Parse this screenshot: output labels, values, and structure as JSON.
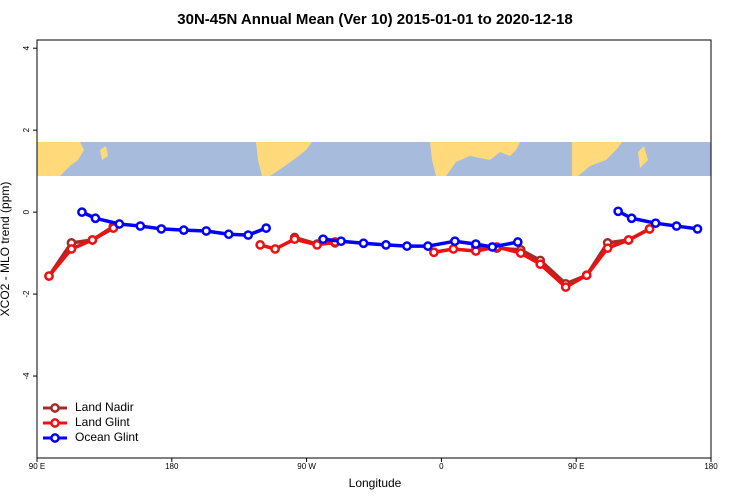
{
  "chart_data": {
    "type": "line",
    "title": "30N-45N Annual Mean (Ver 10)   2015-01-01 to 2020-12-18",
    "x_label": "Longitude",
    "y_label": "XCO2 - MLO trend (ppm)",
    "xlim": [
      90,
      540
    ],
    "xticks": [
      {
        "value": 90,
        "label": "90 E"
      },
      {
        "value": 180,
        "label": "180"
      },
      {
        "value": 270,
        "label": "90 W"
      },
      {
        "value": 360,
        "label": "0"
      },
      {
        "value": 450,
        "label": "90 E"
      },
      {
        "value": 540,
        "label": "180"
      }
    ],
    "ylim": [
      -6,
      4.2
    ],
    "yticks": [
      4,
      2,
      0,
      -2,
      -4
    ],
    "legend": "bottom-left",
    "series": [
      {
        "name": "Land Nadir",
        "color": "#a52a2a",
        "x": [
          98,
          113,
          127,
          141,
          null,
          262,
          277,
          289,
          null,
          383,
          397,
          413,
          426,
          443,
          457,
          471,
          485,
          499
        ],
        "values": [
          -1.56,
          -0.75,
          -0.68,
          -0.35,
          null,
          -0.62,
          -0.78,
          -0.75,
          null,
          -0.85,
          -0.88,
          -0.92,
          -1.18,
          -1.75,
          -1.54,
          -0.75,
          -0.68,
          -0.41
        ]
      },
      {
        "name": "Land Glint",
        "color": "#ee1111",
        "x": [
          98,
          113,
          127,
          141,
          null,
          239,
          249,
          262,
          277,
          289,
          null,
          355,
          368,
          383,
          397,
          413,
          426,
          443,
          457,
          471,
          485,
          499
        ],
        "values": [
          -1.56,
          -0.9,
          -0.68,
          -0.39,
          null,
          -0.8,
          -0.9,
          -0.66,
          -0.8,
          -0.73,
          null,
          -0.98,
          -0.9,
          -0.95,
          -0.85,
          -1.0,
          -1.27,
          -1.83,
          -1.54,
          -0.88,
          -0.68,
          -0.41
        ]
      },
      {
        "name": "Ocean Glint",
        "color": "#0000ff",
        "x": [
          120,
          129,
          145,
          159,
          173,
          188,
          203,
          218,
          231,
          243,
          null,
          281,
          293,
          308,
          323,
          337,
          351,
          369,
          383,
          394,
          411,
          null,
          478,
          487,
          503,
          517,
          531
        ],
        "values": [
          0.0,
          -0.15,
          -0.29,
          -0.34,
          -0.41,
          -0.44,
          -0.46,
          -0.54,
          -0.56,
          -0.39,
          null,
          -0.66,
          -0.71,
          -0.76,
          -0.8,
          -0.83,
          -0.83,
          -0.71,
          -0.78,
          -0.85,
          -0.73,
          null,
          0.02,
          -0.15,
          -0.27,
          -0.34,
          -0.41
        ]
      }
    ]
  }
}
